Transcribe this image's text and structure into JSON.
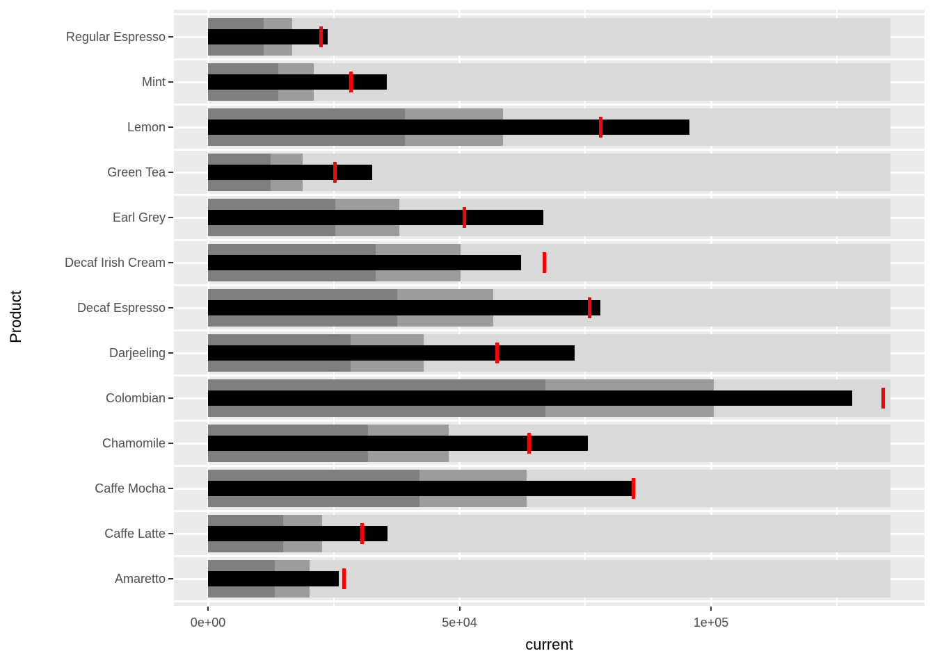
{
  "chart_data": {
    "type": "bullet",
    "title": "",
    "xlabel": "current",
    "ylabel": "Product",
    "legend": "none",
    "grid": true,
    "x_axis": {
      "tick_labels": [
        "0e+00",
        "5e+04",
        "1e+05"
      ],
      "tick_values": [
        0,
        50000,
        100000
      ],
      "minor_tick_values": [
        25000,
        75000,
        125000
      ],
      "xlim": [
        -6800,
        142500
      ]
    },
    "rows": [
      {
        "label": "Regular Espresso",
        "ranges": [
          11100,
          16700,
          135700
        ],
        "measure": 23800,
        "target": 22500
      },
      {
        "label": "Mint",
        "ranges": [
          14000,
          21000,
          135700
        ],
        "measure": 35600,
        "target": 28400
      },
      {
        "label": "Lemon",
        "ranges": [
          39100,
          58600,
          135700
        ],
        "measure": 95700,
        "target": 78100
      },
      {
        "label": "Green Tea",
        "ranges": [
          12400,
          18800,
          135700
        ],
        "measure": 32600,
        "target": 25200
      },
      {
        "label": "Earl Grey",
        "ranges": [
          25300,
          38000,
          135700
        ],
        "measure": 66700,
        "target": 50900
      },
      {
        "label": "Decaf Irish Cream",
        "ranges": [
          33300,
          50200,
          135700
        ],
        "measure": 62200,
        "target": 66900
      },
      {
        "label": "Decaf Espresso",
        "ranges": [
          37600,
          56700,
          135700
        ],
        "measure": 78000,
        "target": 75900
      },
      {
        "label": "Darjeeling",
        "ranges": [
          28400,
          42900,
          135700
        ],
        "measure": 72900,
        "target": 57400
      },
      {
        "label": "Colombian",
        "ranges": [
          67100,
          100500,
          135700
        ],
        "measure": 128100,
        "target": 134200
      },
      {
        "label": "Chamomile",
        "ranges": [
          31800,
          47900,
          135700
        ],
        "measure": 75500,
        "target": 63800
      },
      {
        "label": "Caffe Mocha",
        "ranges": [
          42000,
          63300,
          135700
        ],
        "measure": 84200,
        "target": 84600
      },
      {
        "label": "Caffe Latte",
        "ranges": [
          15000,
          22700,
          135700
        ],
        "measure": 35700,
        "target": 30600
      },
      {
        "label": "Amaretto",
        "ranges": [
          13300,
          20200,
          135700
        ],
        "measure": 26000,
        "target": 27000
      }
    ],
    "colors": {
      "range_light": "#D9D9D9",
      "range_mid": "#9C9C9C",
      "range_dark": "#7F7F7F",
      "measure": "#000000",
      "target": "#FF0000",
      "panel_background": "#EBEBEB",
      "gridline": "#FFFFFF",
      "axis_text": "#4D4D4D",
      "axis_tick": "#333333",
      "axis_title": "#000000"
    }
  }
}
